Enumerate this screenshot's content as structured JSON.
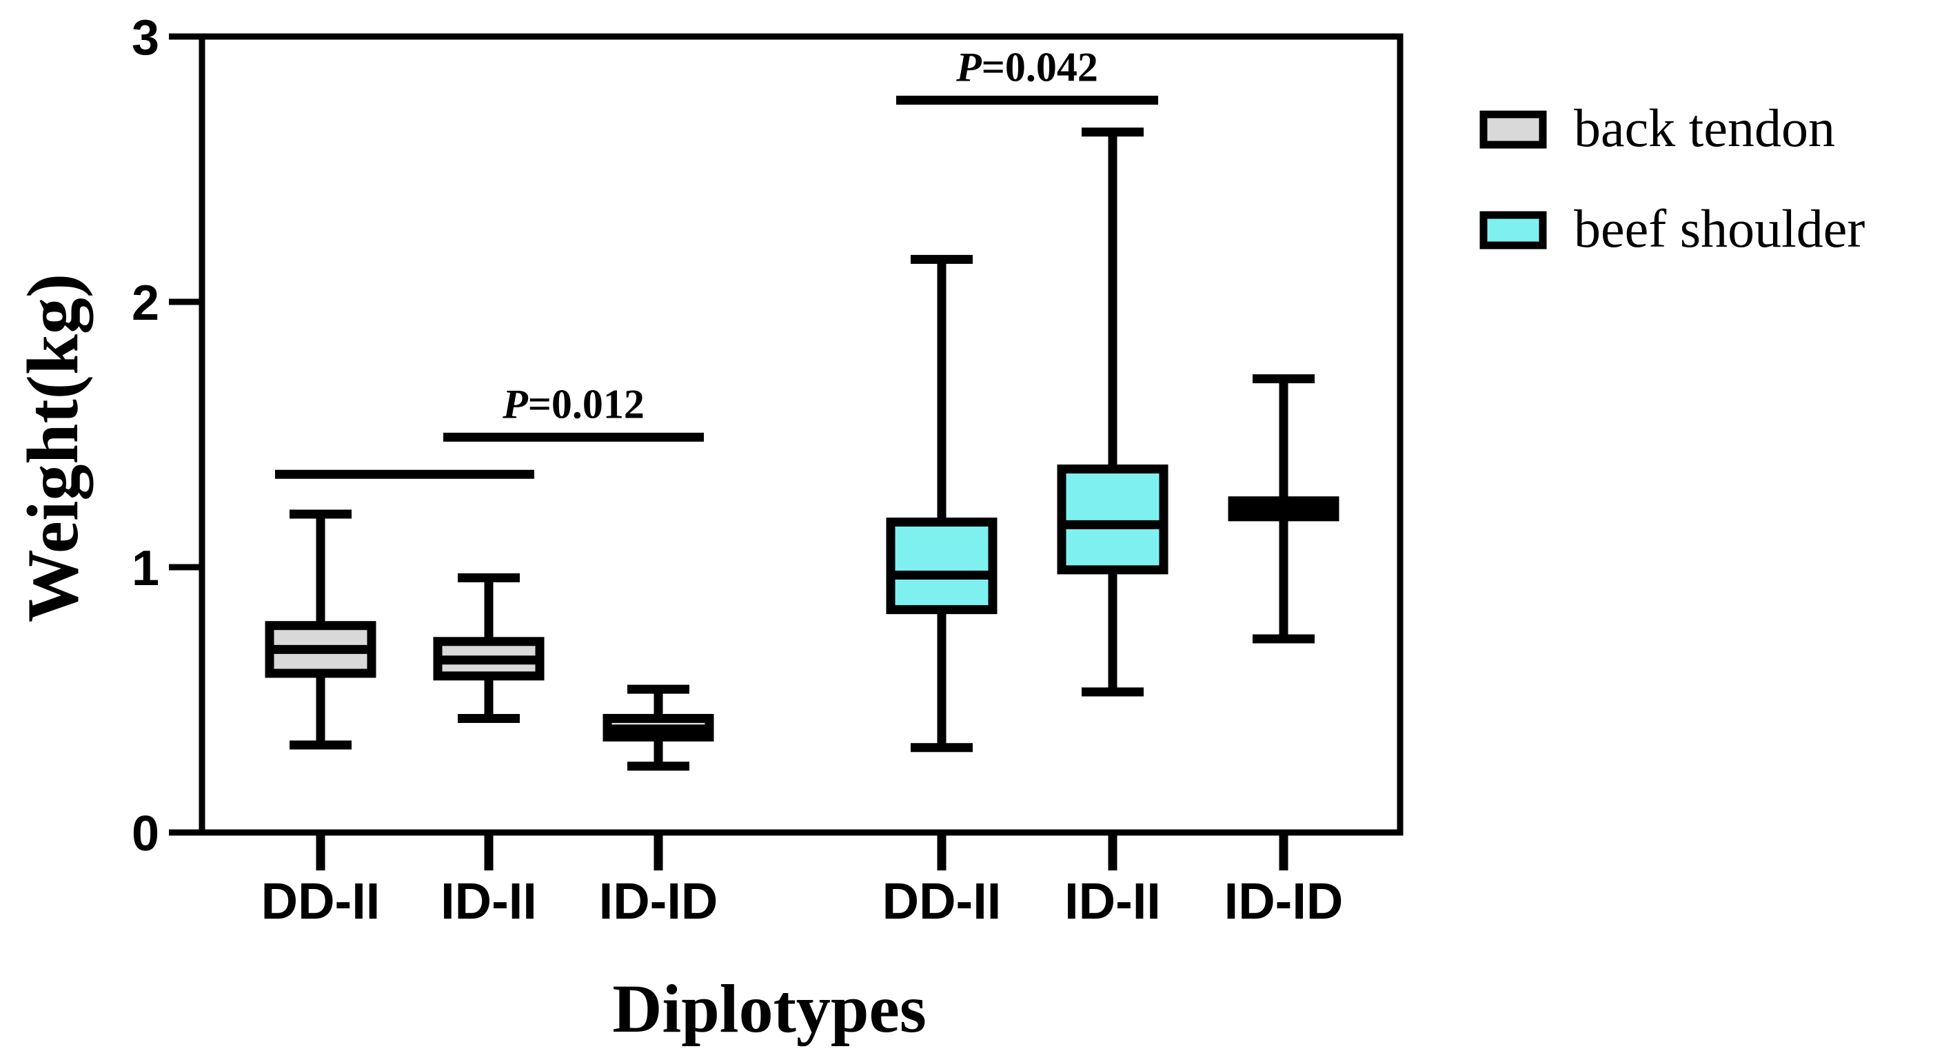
{
  "chart_data": {
    "type": "boxplot",
    "xlabel": "Diplotypes",
    "ylabel": "Weight(kg)",
    "ylim": [
      0,
      3
    ],
    "yticks": [
      "0",
      "1",
      "2",
      "3"
    ],
    "categories": [
      "DD-II",
      "ID-II",
      "ID-ID"
    ],
    "series": [
      {
        "name": "back tendon",
        "color": "#d9d9d9",
        "boxes": [
          {
            "category": "DD-II",
            "min": 0.33,
            "q1": 0.6,
            "median": 0.69,
            "q3": 0.78,
            "max": 1.2
          },
          {
            "category": "ID-II",
            "min": 0.43,
            "q1": 0.59,
            "median": 0.65,
            "q3": 0.72,
            "max": 0.96
          },
          {
            "category": "ID-ID",
            "min": 0.25,
            "q1": 0.36,
            "median": 0.39,
            "q3": 0.43,
            "max": 0.54
          }
        ]
      },
      {
        "name": "beef shoulder",
        "color": "#7ff0f0",
        "boxes": [
          {
            "category": "DD-II",
            "min": 0.32,
            "q1": 0.84,
            "median": 0.97,
            "q3": 1.17,
            "max": 2.16
          },
          {
            "category": "ID-II",
            "min": 0.53,
            "q1": 0.99,
            "median": 1.16,
            "q3": 1.37,
            "max": 2.64
          },
          {
            "category": "ID-ID",
            "min": 0.73,
            "q1": 1.19,
            "median": 1.22,
            "q3": 1.25,
            "max": 1.71
          }
        ]
      }
    ],
    "annotations": [
      {
        "series": "back tendon",
        "from": "DD-II",
        "to": "ID-II",
        "y": 1.35,
        "label_p": "",
        "label_rest": ""
      },
      {
        "series": "back tendon",
        "from": "ID-II",
        "to": "ID-ID",
        "y": 1.49,
        "label_p": "P",
        "label_rest": "=0.012"
      },
      {
        "series": "beef shoulder",
        "from": "DD-II",
        "to": "ID-II",
        "y": 2.76,
        "label_p": "P",
        "label_rest": "=0.042"
      }
    ]
  }
}
